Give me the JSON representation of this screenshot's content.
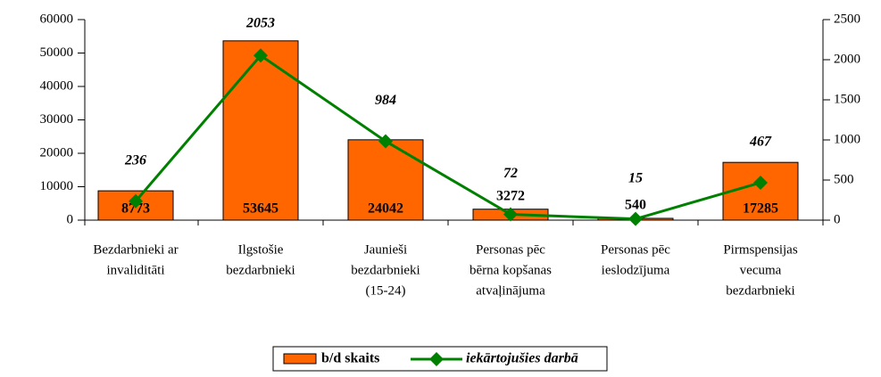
{
  "chart_data": {
    "type": "bar-line",
    "categories": [
      [
        "Bezdarbnieki ar",
        "invaliditāti"
      ],
      [
        "Ilgstošie",
        "bezdarbnieki"
      ],
      [
        "Jaunieši",
        "bezdarbnieki",
        "(15-24)"
      ],
      [
        "Personas pēc",
        "bērna kopšanas",
        "atvaļinājuma"
      ],
      [
        "Personas pēc",
        "ieslodzījuma"
      ],
      [
        "Pirmspensijas",
        "vecuma",
        "bezdarbnieki"
      ]
    ],
    "series": [
      {
        "name": "b/d skaits",
        "color": "#ff6600",
        "type": "bar",
        "values": [
          8773,
          53645,
          24042,
          3272,
          540,
          17285
        ]
      },
      {
        "name": "iekārtojušies darbā",
        "color": "#008000",
        "type": "line",
        "axis": "y2",
        "values": [
          236,
          2053,
          984,
          72,
          15,
          467
        ]
      }
    ],
    "ylim": [
      0,
      60000
    ],
    "yticks": [
      0,
      10000,
      20000,
      30000,
      40000,
      50000,
      60000
    ],
    "y2lim": [
      0,
      2500
    ],
    "y2ticks": [
      0,
      500,
      1000,
      1500,
      2000,
      2500
    ],
    "legend": "bottom"
  }
}
